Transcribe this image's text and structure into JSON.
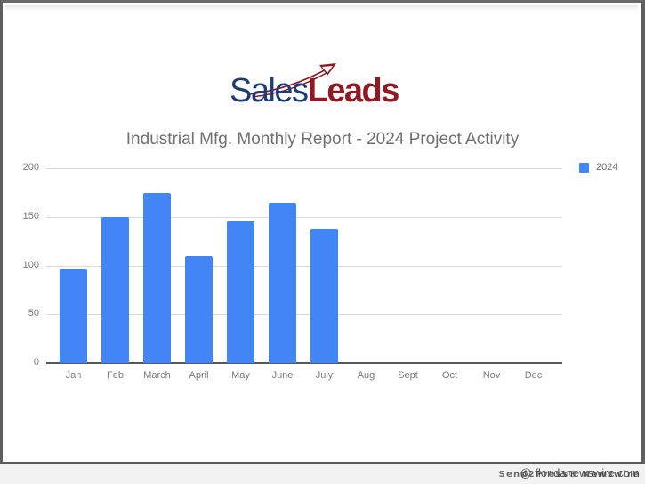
{
  "logo": {
    "part1": "Sales",
    "part2": "Leads",
    "colors": {
      "sales": "#1f3c74",
      "leads": "#8e1b24"
    },
    "icon": "swoosh-arrow-icon"
  },
  "chart_data": {
    "type": "bar",
    "title": "Industrial Mfg. Monthly Report - 2024 Project Activity",
    "xlabel": "",
    "ylabel": "",
    "categories": [
      "Jan",
      "Feb",
      "March",
      "April",
      "May",
      "June",
      "July",
      "Aug",
      "Sept",
      "Oct",
      "Nov",
      "Dec"
    ],
    "series": [
      {
        "name": "2024",
        "color": "#4285f4",
        "values": [
          97,
          150,
          174,
          110,
          146,
          164,
          138,
          null,
          null,
          null,
          null,
          null
        ]
      }
    ],
    "ylim": [
      0,
      200
    ],
    "yticks": [
      0,
      50,
      100,
      150,
      200
    ],
    "grid": true,
    "legend_position": "right"
  },
  "footer": {
    "credit": "Send2Press® Newswire",
    "watermark": "@ floridanewswire.com"
  }
}
